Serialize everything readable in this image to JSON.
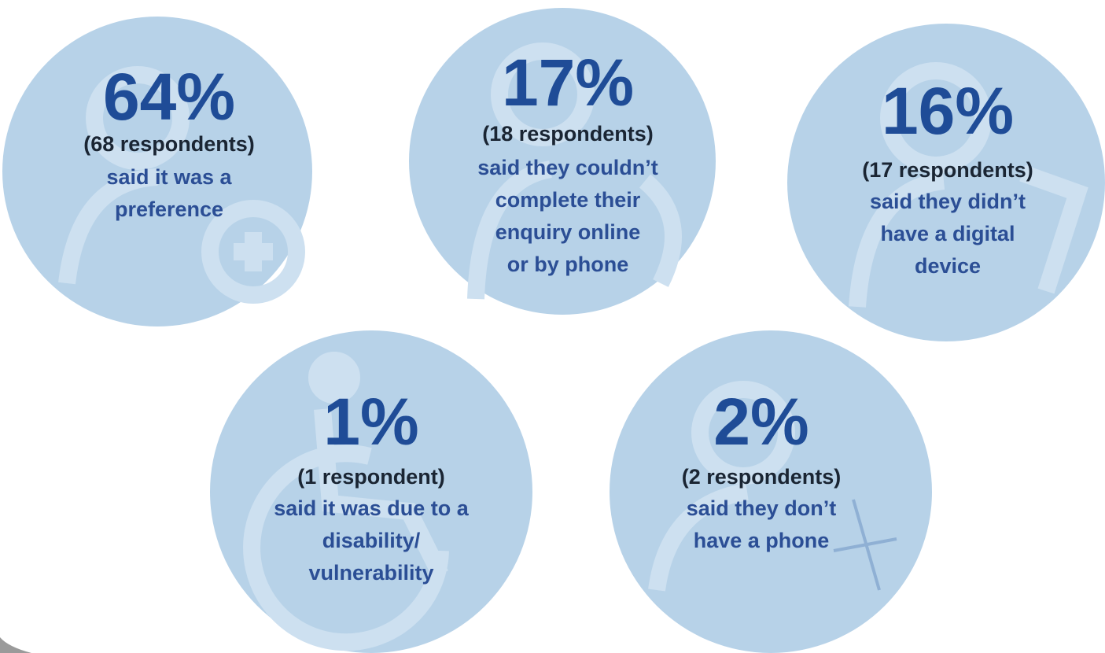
{
  "items": [
    {
      "percent": "64%",
      "respondents": "(68 respondents)",
      "lines": [
        "said it was a",
        "preference"
      ]
    },
    {
      "percent": "17%",
      "respondents": "(18 respondents)",
      "lines": [
        "said they couldn’t",
        "complete their",
        "enquiry online",
        "or by phone"
      ]
    },
    {
      "percent": "16%",
      "respondents": "(17 respondents)",
      "lines": [
        "said they didn’t",
        "have a digital",
        "device"
      ]
    },
    {
      "percent": "1%",
      "respondents": "(1 respondent)",
      "lines": [
        "said it was due to a",
        "disability/",
        "vulnerability"
      ]
    },
    {
      "percent": "2%",
      "respondents": "(2 respondents)",
      "lines": [
        "said they don’t",
        "have a phone"
      ]
    }
  ]
}
